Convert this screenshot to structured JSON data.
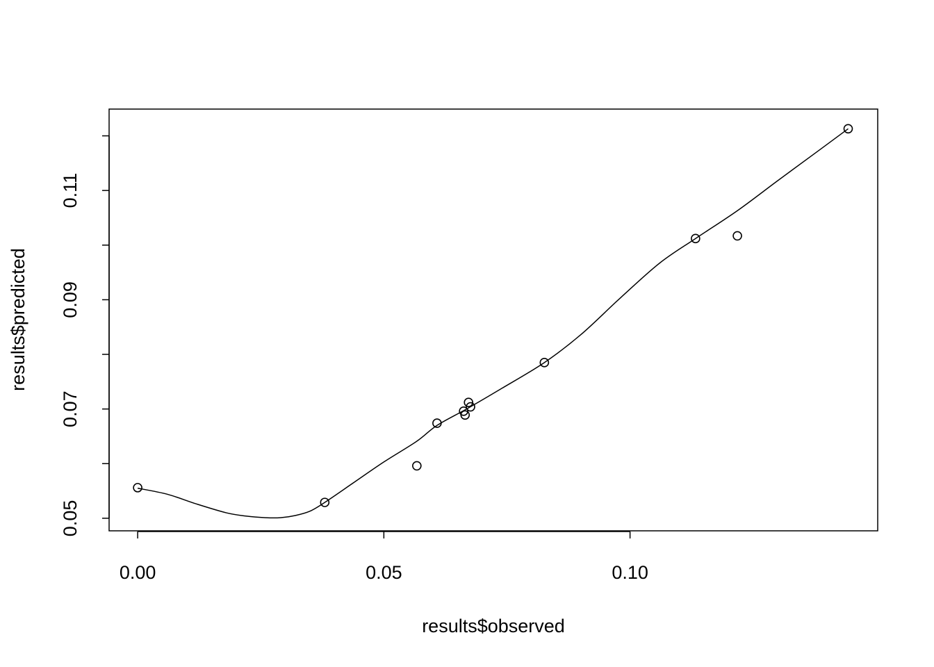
{
  "chart_data": {
    "type": "scatter",
    "title": "",
    "xlabel": "results$observed",
    "ylabel": "results$predicted",
    "xlim": [
      -0.0058,
      0.1503
    ],
    "ylim": [
      0.0477,
      0.1249
    ],
    "x_ticks": [
      0.0,
      0.05,
      0.1
    ],
    "x_tick_labels": [
      "0.00",
      "0.05",
      "0.10"
    ],
    "y_ticks": [
      0.05,
      0.06,
      0.07,
      0.08,
      0.09,
      0.1,
      0.11,
      0.12
    ],
    "y_tick_labels": [
      "0.05",
      "",
      "0.07",
      "",
      "0.09",
      "",
      "0.11",
      ""
    ],
    "grid": false,
    "legend": "none",
    "points": {
      "x": [
        0.0,
        0.038,
        0.0567,
        0.0608,
        0.0662,
        0.0665,
        0.0672,
        0.0676,
        0.0826,
        0.1133,
        0.1218,
        0.1443
      ],
      "y": [
        0.0556,
        0.0529,
        0.0596,
        0.0674,
        0.0696,
        0.0689,
        0.0712,
        0.0704,
        0.0785,
        0.1012,
        0.1017,
        0.1213
      ]
    },
    "smooth_line": {
      "x": [
        0.0,
        0.006,
        0.012,
        0.018,
        0.022,
        0.026,
        0.029,
        0.032,
        0.035,
        0.038,
        0.044,
        0.05,
        0.0567,
        0.0608,
        0.067,
        0.074,
        0.0826,
        0.09,
        0.098,
        0.106,
        0.1133,
        0.1218,
        0.13,
        0.138,
        0.1443
      ],
      "y": [
        0.0555,
        0.0544,
        0.0526,
        0.051,
        0.0504,
        0.0501,
        0.0501,
        0.0505,
        0.0513,
        0.0529,
        0.0566,
        0.0603,
        0.0641,
        0.067,
        0.0701,
        0.0738,
        0.0785,
        0.0836,
        0.0903,
        0.0967,
        0.1012,
        0.1063,
        0.1118,
        0.1171,
        0.1213
      ]
    }
  }
}
